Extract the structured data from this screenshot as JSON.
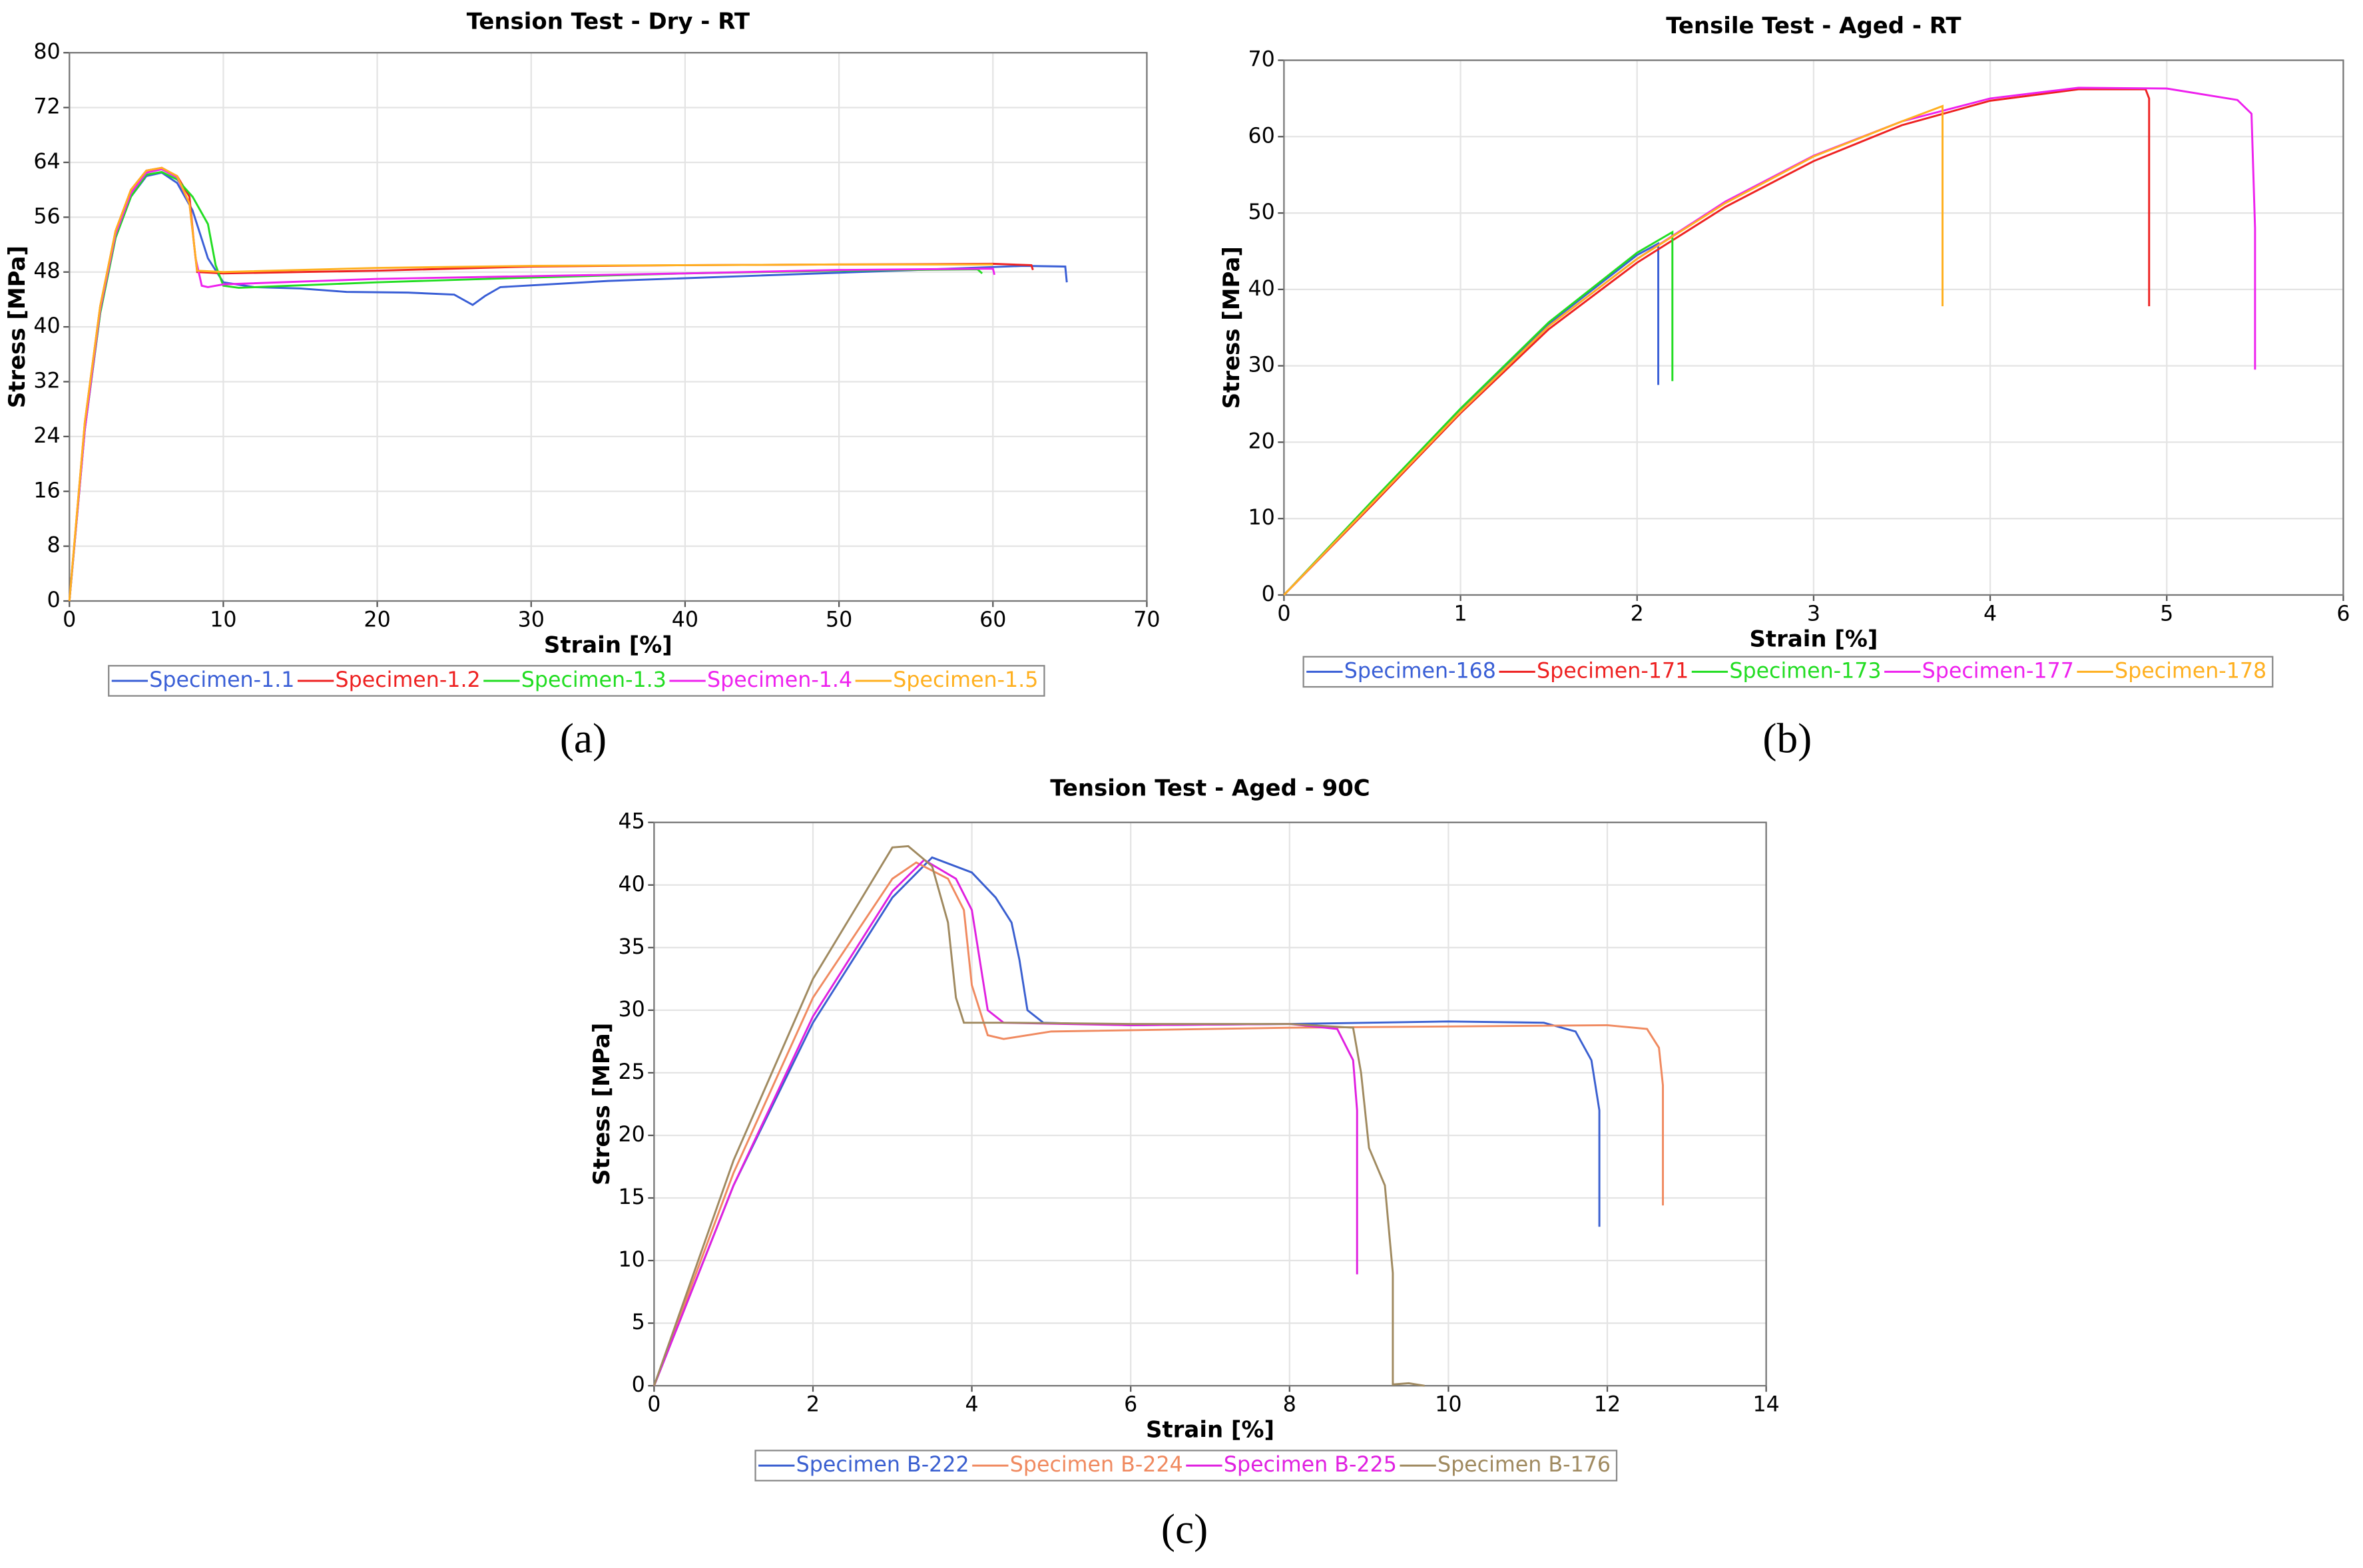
{
  "chart_data": [
    {
      "type": "line",
      "title": "Tension Test - Dry - RT",
      "x_label": "Strain [%]",
      "y_label": "Stress [MPa]",
      "panel_label": "(a)",
      "xlim": [
        0,
        70
      ],
      "ylim": [
        0,
        80
      ],
      "xticks": [
        0,
        10,
        20,
        30,
        40,
        50,
        60,
        70
      ],
      "yticks": [
        0,
        8,
        16,
        24,
        32,
        40,
        48,
        56,
        64,
        72,
        80
      ],
      "grid": true,
      "series": [
        {
          "name": "Specimen-1.1",
          "color": "#3a5fd6",
          "x": [
            0,
            1,
            2,
            3,
            4,
            5,
            6,
            7,
            8,
            9,
            10,
            12,
            15,
            18,
            22,
            25,
            26.2,
            27,
            28,
            35,
            45,
            55,
            62,
            64.7,
            64.8
          ],
          "values": [
            0,
            25,
            42,
            53,
            59,
            62,
            62.5,
            61,
            57,
            50,
            46.5,
            45.8,
            45.6,
            45.1,
            45,
            44.7,
            43.2,
            44.5,
            45.8,
            46.7,
            47.5,
            48.3,
            48.9,
            48.8,
            46.5
          ]
        },
        {
          "name": "Specimen-1.2",
          "color": "#ee2222",
          "x": [
            0,
            1,
            2,
            3,
            4,
            5,
            6,
            7,
            7.8,
            8.1,
            8.3,
            10,
            20,
            30,
            40,
            50,
            60,
            62.5,
            62.6
          ],
          "values": [
            0,
            26,
            43,
            54,
            60,
            62.8,
            63.2,
            62,
            59,
            52,
            48,
            47.8,
            48.2,
            48.8,
            49,
            49.1,
            49.2,
            49,
            48.3
          ]
        },
        {
          "name": "Specimen-1.3",
          "color": "#22dd22",
          "x": [
            0,
            1,
            2,
            3,
            4,
            5,
            6,
            7,
            8,
            9,
            9.5,
            10,
            11,
            20,
            30,
            40,
            50,
            59,
            59.3
          ],
          "values": [
            0,
            25,
            42,
            53,
            59,
            62.2,
            62.6,
            61.5,
            59,
            55,
            49,
            46,
            45.7,
            46.5,
            47.2,
            47.8,
            48.2,
            48.4,
            47.8
          ]
        },
        {
          "name": "Specimen-1.4",
          "color": "#ee22ee",
          "x": [
            0,
            1,
            2,
            3,
            4,
            5,
            6,
            7,
            7.8,
            8.2,
            8.6,
            9,
            10,
            20,
            30,
            40,
            50,
            60,
            60.1
          ],
          "values": [
            0,
            25,
            42.5,
            53.5,
            59.5,
            62.5,
            63,
            61.8,
            58,
            50,
            46,
            45.8,
            46.2,
            47,
            47.4,
            47.8,
            48.3,
            48.5,
            47.6
          ]
        },
        {
          "name": "Specimen-1.5",
          "color": "#ffb020",
          "x": [
            0,
            1,
            2,
            3,
            4,
            5,
            6,
            7,
            7.8,
            8.1,
            8.3,
            10,
            20,
            30,
            40,
            50,
            60
          ],
          "values": [
            0,
            26,
            43,
            54,
            60,
            62.8,
            63.2,
            62,
            58,
            52,
            48.2,
            48,
            48.6,
            48.9,
            49,
            49.1,
            49.1
          ]
        }
      ]
    },
    {
      "type": "line",
      "title": "Tensile Test - Aged - RT",
      "x_label": "Strain [%]",
      "y_label": "Stress [MPa]",
      "panel_label": "(b)",
      "xlim": [
        0,
        6
      ],
      "ylim": [
        0,
        70
      ],
      "xticks": [
        0,
        1,
        2,
        3,
        4,
        5,
        6
      ],
      "yticks": [
        0,
        10,
        20,
        30,
        40,
        50,
        60,
        70
      ],
      "grid": true,
      "series": [
        {
          "name": "Specimen-168",
          "color": "#3a5fd6",
          "x": [
            0,
            0.5,
            1,
            1.5,
            2,
            2.12,
            2.12
          ],
          "values": [
            0,
            12.2,
            24.3,
            35.5,
            44.5,
            46,
            27.5
          ]
        },
        {
          "name": "Specimen-171",
          "color": "#ee2222",
          "x": [
            0,
            0.5,
            1,
            1.5,
            2,
            2.5,
            3,
            3.5,
            4,
            4.5,
            4.88,
            4.9,
            4.9
          ],
          "values": [
            0,
            11.8,
            23.8,
            34.8,
            43.5,
            50.8,
            56.8,
            61.5,
            64.7,
            66.2,
            66.2,
            65,
            37.8
          ]
        },
        {
          "name": "Specimen-173",
          "color": "#22dd22",
          "x": [
            0,
            0.5,
            1,
            1.5,
            2,
            2.2,
            2.2
          ],
          "values": [
            0,
            12.3,
            24.4,
            35.7,
            44.8,
            47.5,
            28
          ]
        },
        {
          "name": "Specimen-177",
          "color": "#ee22ee",
          "x": [
            0,
            0.5,
            1,
            1.5,
            2,
            2.5,
            3,
            3.5,
            4,
            4.5,
            5,
            5.4,
            5.48,
            5.5,
            5.5
          ],
          "values": [
            0,
            12,
            24,
            35.2,
            44,
            51.5,
            57.5,
            62,
            65,
            66.4,
            66.3,
            64.8,
            63,
            48,
            29.5
          ]
        },
        {
          "name": "Specimen-178",
          "color": "#ffb020",
          "x": [
            0,
            0.5,
            1,
            1.5,
            2,
            2.5,
            3,
            3.5,
            3.73,
            3.73
          ],
          "values": [
            0,
            12,
            24,
            35.2,
            44,
            51.3,
            57.4,
            62,
            64,
            37.8
          ]
        }
      ]
    },
    {
      "type": "line",
      "title": "Tension Test - Aged - 90C",
      "x_label": "Strain [%]",
      "y_label": "Stress [MPa]",
      "panel_label": "(c)",
      "xlim": [
        0,
        14
      ],
      "ylim": [
        0,
        45
      ],
      "xticks": [
        0,
        2,
        4,
        6,
        8,
        10,
        12,
        14
      ],
      "yticks": [
        0,
        5,
        10,
        15,
        20,
        25,
        30,
        35,
        40,
        45
      ],
      "grid": true,
      "series": [
        {
          "name": "Specimen B-222",
          "color": "#3a5fd0",
          "x": [
            0,
            1,
            2,
            3,
            3.5,
            4,
            4.3,
            4.5,
            4.6,
            4.7,
            4.9,
            6,
            8,
            10,
            11.2,
            11.6,
            11.8,
            11.9,
            11.9
          ],
          "values": [
            0,
            16,
            29,
            39,
            42.2,
            41,
            39,
            37,
            34,
            30,
            29,
            28.8,
            28.9,
            29.1,
            29,
            28.3,
            26,
            22,
            12.7
          ]
        },
        {
          "name": "Specimen B-224",
          "color": "#f08a60",
          "x": [
            0,
            1,
            2,
            3,
            3.3,
            3.7,
            3.9,
            4,
            4.2,
            4.4,
            5,
            8,
            10,
            12,
            12.5,
            12.65,
            12.7,
            12.7
          ],
          "values": [
            0,
            17,
            31,
            40.5,
            41.8,
            40.5,
            38,
            32,
            28,
            27.7,
            28.3,
            28.6,
            28.7,
            28.8,
            28.5,
            27,
            24,
            14.4
          ]
        },
        {
          "name": "Specimen B-225",
          "color": "#e020e0",
          "x": [
            0,
            1,
            2,
            3,
            3.4,
            3.8,
            4,
            4.1,
            4.2,
            4.4,
            6,
            8,
            8.6,
            8.8,
            8.85,
            8.85
          ],
          "values": [
            0,
            16,
            29.5,
            39.5,
            42,
            40.5,
            38,
            34,
            30,
            29,
            28.8,
            28.9,
            28.5,
            26,
            22,
            8.9
          ]
        },
        {
          "name": "Specimen B-176",
          "color": "#a08a60",
          "x": [
            0,
            1,
            2,
            3,
            3.2,
            3.5,
            3.7,
            3.8,
            3.9,
            4.5,
            6,
            8,
            8.8,
            8.9,
            9,
            9.2,
            9.3,
            9.3,
            9.5,
            9.7
          ],
          "values": [
            0,
            18,
            32.5,
            43,
            43.1,
            41.5,
            37,
            31,
            29,
            29,
            28.9,
            28.9,
            28.6,
            25,
            19,
            16,
            9,
            0.1,
            0.2,
            0
          ]
        }
      ]
    }
  ]
}
